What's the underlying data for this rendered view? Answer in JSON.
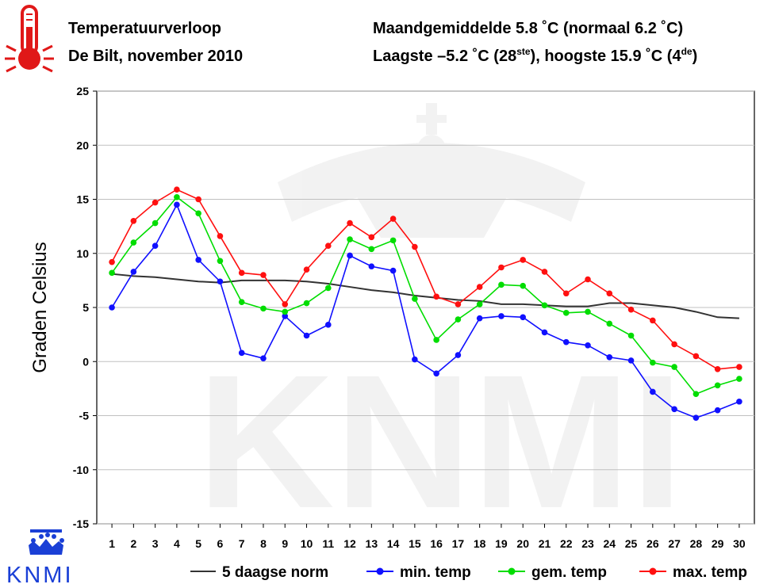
{
  "header": {
    "title_line1": "Temperatuurverloop",
    "title_line2": "De Bilt, november 2010",
    "summary_line1": "Maandgemiddelde 5.8 ˚C (normaal 6.2 ˚C)",
    "summary_line2_prefix": "Laagste –5.2 ˚C (28",
    "summary_line2_sup1": "ste",
    "summary_line2_middle": "), hoogste 15.9 ˚C (4",
    "summary_line2_sup2": "de",
    "summary_line2_suffix": ")"
  },
  "logo": {
    "text": "KNMI",
    "watermark_text": "KNMI"
  },
  "icons": {
    "header": "thermometer-icon",
    "logo": "crown-icon"
  },
  "chart_data": {
    "type": "line",
    "title": "Temperatuurverloop De Bilt, november 2010",
    "xlabel": "",
    "ylabel": "Graden Celsius",
    "x": [
      1,
      2,
      3,
      4,
      5,
      6,
      7,
      8,
      9,
      10,
      11,
      12,
      13,
      14,
      15,
      16,
      17,
      18,
      19,
      20,
      21,
      22,
      23,
      24,
      25,
      26,
      27,
      28,
      29,
      30
    ],
    "xlim": [
      0.3,
      30.7
    ],
    "ylim": [
      -15,
      25
    ],
    "yticks": [
      -15,
      -10,
      -5,
      0,
      5,
      10,
      15,
      20,
      25
    ],
    "grid": true,
    "legend_position": "bottom",
    "series": [
      {
        "name": "5 daagse norm",
        "color": "#333333",
        "markers": false,
        "values": [
          8.1,
          7.9,
          7.8,
          7.6,
          7.4,
          7.3,
          7.5,
          7.5,
          7.5,
          7.4,
          7.2,
          6.9,
          6.6,
          6.4,
          6.1,
          5.9,
          5.7,
          5.6,
          5.3,
          5.3,
          5.2,
          5.1,
          5.1,
          5.4,
          5.4,
          5.2,
          5.0,
          4.6,
          4.1,
          4.0
        ]
      },
      {
        "name": "min. temp",
        "color": "#1010ff",
        "markers": true,
        "values": [
          5.0,
          8.3,
          10.7,
          14.5,
          9.4,
          7.4,
          0.8,
          0.3,
          4.2,
          2.4,
          3.4,
          9.8,
          8.8,
          8.4,
          0.2,
          -1.1,
          0.6,
          4.0,
          4.2,
          4.1,
          2.7,
          1.8,
          1.5,
          0.4,
          0.1,
          -2.8,
          -4.4,
          -5.2,
          -4.5,
          -3.7
        ]
      },
      {
        "name": "gem. temp",
        "color": "#00dd00",
        "markers": true,
        "values": [
          8.2,
          11.0,
          12.8,
          15.2,
          13.7,
          9.3,
          5.5,
          4.9,
          4.6,
          5.4,
          6.8,
          11.3,
          10.4,
          11.2,
          5.8,
          2.0,
          3.9,
          5.3,
          7.1,
          7.0,
          5.2,
          4.5,
          4.6,
          3.5,
          2.4,
          -0.1,
          -0.5,
          -3.0,
          -2.2,
          -1.6
        ]
      },
      {
        "name": "max. temp",
        "color": "#ff1010",
        "markers": true,
        "values": [
          9.2,
          13.0,
          14.7,
          15.9,
          15.0,
          11.6,
          8.2,
          8.0,
          5.3,
          8.5,
          10.7,
          12.8,
          11.5,
          13.2,
          10.6,
          6.0,
          5.3,
          6.9,
          8.7,
          9.4,
          8.3,
          6.3,
          7.6,
          6.3,
          4.8,
          3.8,
          1.6,
          0.5,
          -0.7,
          -0.5
        ]
      }
    ]
  }
}
